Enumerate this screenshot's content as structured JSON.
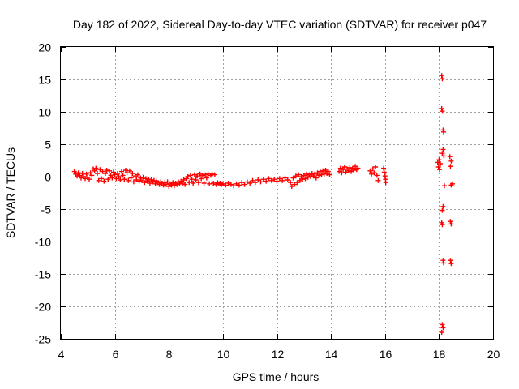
{
  "chart_data": {
    "type": "scatter",
    "title": "Day 182 of 2022, Sidereal Day-to-day VTEC variation (SDTVAR) for receiver p047",
    "xlabel": "GPS time / hours",
    "ylabel": "SDTVAR / TECUs",
    "xlim": [
      4,
      20
    ],
    "ylim": [
      -25,
      20
    ],
    "xticks": [
      4,
      6,
      8,
      10,
      12,
      14,
      16,
      18,
      20
    ],
    "yticks": [
      -25,
      -20,
      -15,
      -10,
      -5,
      0,
      5,
      10,
      15,
      20
    ],
    "xtick_labels": [
      "4",
      "6",
      "8",
      "10",
      "12",
      "14",
      "16",
      "18",
      "20"
    ],
    "ytick_labels": [
      "-25",
      "-20",
      "-15",
      "-10",
      "-5",
      "0",
      "5",
      "10",
      "15",
      "20"
    ],
    "grid": true,
    "point_marker": "+",
    "series": [
      {
        "name": "SDTVAR",
        "color": "#ff0000",
        "points": [
          [
            4.5,
            0.8
          ],
          [
            4.55,
            0.4
          ],
          [
            4.6,
            0.1
          ],
          [
            4.65,
            0.6
          ],
          [
            4.7,
            0.2
          ],
          [
            4.75,
            -0.2
          ],
          [
            4.8,
            0.5
          ],
          [
            4.85,
            0.0
          ],
          [
            4.9,
            -0.3
          ],
          [
            4.95,
            0.4
          ],
          [
            5.0,
            -0.1
          ],
          [
            5.05,
            -0.4
          ],
          [
            5.1,
            0.6
          ],
          [
            5.15,
            0.2
          ],
          [
            5.2,
            1.2
          ],
          [
            5.25,
            0.9
          ],
          [
            5.3,
            1.3
          ],
          [
            5.35,
            0.5
          ],
          [
            5.4,
            -0.6
          ],
          [
            5.45,
            1.1
          ],
          [
            5.5,
            -0.3
          ],
          [
            5.55,
            0.8
          ],
          [
            5.6,
            -0.7
          ],
          [
            5.65,
            0.5
          ],
          [
            5.7,
            1.0
          ],
          [
            5.75,
            -0.4
          ],
          [
            5.8,
            0.9
          ],
          [
            5.85,
            0.2
          ],
          [
            5.9,
            -0.2
          ],
          [
            5.95,
            0.7
          ],
          [
            6.0,
            0.3
          ],
          [
            6.05,
            -0.3
          ],
          [
            6.1,
            0.5
          ],
          [
            6.15,
            0.0
          ],
          [
            6.2,
            -0.5
          ],
          [
            6.25,
            0.8
          ],
          [
            6.3,
            0.2
          ],
          [
            6.35,
            -0.4
          ],
          [
            6.4,
            1.0
          ],
          [
            6.45,
            0.6
          ],
          [
            6.5,
            -0.6
          ],
          [
            6.55,
            0.9
          ],
          [
            6.6,
            -0.2
          ],
          [
            6.65,
            0.5
          ],
          [
            6.7,
            -0.8
          ],
          [
            6.75,
            0.1
          ],
          [
            6.8,
            -0.5
          ],
          [
            6.85,
            0.3
          ],
          [
            6.9,
            -0.7
          ],
          [
            6.95,
            -0.2
          ],
          [
            7.0,
            -0.6
          ],
          [
            7.05,
            -0.1
          ],
          [
            7.1,
            -0.9
          ],
          [
            7.15,
            -0.3
          ],
          [
            7.2,
            -0.7
          ],
          [
            7.25,
            -0.4
          ],
          [
            7.3,
            -1.0
          ],
          [
            7.35,
            -0.5
          ],
          [
            7.4,
            -0.8
          ],
          [
            7.45,
            -0.6
          ],
          [
            7.5,
            -1.1
          ],
          [
            7.55,
            -0.7
          ],
          [
            7.6,
            -0.9
          ],
          [
            7.65,
            -1.2
          ],
          [
            7.7,
            -0.8
          ],
          [
            7.75,
            -1.0
          ],
          [
            7.8,
            -1.3
          ],
          [
            7.85,
            -0.9
          ],
          [
            7.9,
            -1.2
          ],
          [
            7.95,
            -0.8
          ],
          [
            8.0,
            -1.5
          ],
          [
            8.05,
            -1.1
          ],
          [
            8.1,
            -1.3
          ],
          [
            8.15,
            -0.9
          ],
          [
            8.2,
            -1.4
          ],
          [
            8.25,
            -1.0
          ],
          [
            8.3,
            -1.2
          ],
          [
            8.35,
            -0.8
          ],
          [
            8.4,
            -1.1
          ],
          [
            8.45,
            -0.7
          ],
          [
            8.5,
            -1.0
          ],
          [
            8.55,
            -0.5
          ],
          [
            8.6,
            -1.2
          ],
          [
            8.65,
            -0.3
          ],
          [
            8.7,
            0.0
          ],
          [
            8.75,
            -0.9
          ],
          [
            8.8,
            0.2
          ],
          [
            8.85,
            -0.4
          ],
          [
            8.9,
            -1.0
          ],
          [
            8.95,
            0.3
          ],
          [
            9.0,
            -0.5
          ],
          [
            9.05,
            0.1
          ],
          [
            9.1,
            -0.9
          ],
          [
            9.15,
            0.4
          ],
          [
            9.2,
            -0.3
          ],
          [
            9.25,
            0.2
          ],
          [
            9.3,
            -1.0
          ],
          [
            9.35,
            0.3
          ],
          [
            9.4,
            -0.2
          ],
          [
            9.45,
            0.4
          ],
          [
            9.5,
            -1.1
          ],
          [
            9.55,
            0.2
          ],
          [
            9.6,
            0.4
          ],
          [
            9.65,
            -1.0
          ],
          [
            9.7,
            0.3
          ],
          [
            9.75,
            -1.2
          ],
          [
            9.8,
            -0.9
          ],
          [
            9.85,
            -1.1
          ],
          [
            9.9,
            -1.0
          ],
          [
            9.95,
            -1.2
          ],
          [
            10.0,
            -1.1
          ],
          [
            10.1,
            -1.3
          ],
          [
            10.2,
            -1.0
          ],
          [
            10.3,
            -1.2
          ],
          [
            10.4,
            -1.4
          ],
          [
            10.5,
            -1.1
          ],
          [
            10.6,
            -1.3
          ],
          [
            10.7,
            -0.9
          ],
          [
            10.8,
            -1.2
          ],
          [
            10.9,
            -0.8
          ],
          [
            11.0,
            -1.0
          ],
          [
            11.1,
            -0.6
          ],
          [
            11.2,
            -0.9
          ],
          [
            11.3,
            -0.5
          ],
          [
            11.4,
            -0.8
          ],
          [
            11.5,
            -0.4
          ],
          [
            11.6,
            -0.7
          ],
          [
            11.7,
            -0.3
          ],
          [
            11.8,
            -0.6
          ],
          [
            11.9,
            -0.4
          ],
          [
            12.0,
            -0.7
          ],
          [
            12.1,
            -0.3
          ],
          [
            12.2,
            -0.6
          ],
          [
            12.3,
            -0.2
          ],
          [
            12.4,
            -0.5
          ],
          [
            12.5,
            -0.9
          ],
          [
            12.55,
            -1.5
          ],
          [
            12.6,
            -0.2
          ],
          [
            12.65,
            -1.2
          ],
          [
            12.7,
            0.1
          ],
          [
            12.75,
            -0.9
          ],
          [
            12.8,
            0.3
          ],
          [
            12.85,
            -0.6
          ],
          [
            12.9,
            0.0
          ],
          [
            12.95,
            -0.4
          ],
          [
            13.0,
            0.2
          ],
          [
            13.05,
            -0.3
          ],
          [
            13.1,
            0.4
          ],
          [
            13.15,
            -0.1
          ],
          [
            13.2,
            0.3
          ],
          [
            13.25,
            0.0
          ],
          [
            13.3,
            0.5
          ],
          [
            13.35,
            0.1
          ],
          [
            13.4,
            0.4
          ],
          [
            13.45,
            -0.2
          ],
          [
            13.5,
            0.6
          ],
          [
            13.55,
            0.2
          ],
          [
            13.6,
            0.8
          ],
          [
            13.65,
            0.3
          ],
          [
            13.7,
            0.9
          ],
          [
            13.75,
            0.4
          ],
          [
            13.8,
            1.0
          ],
          [
            13.85,
            0.5
          ],
          [
            13.9,
            0.8
          ],
          [
            13.95,
            0.3
          ],
          [
            14.3,
            0.8
          ],
          [
            14.35,
            1.3
          ],
          [
            14.4,
            0.6
          ],
          [
            14.45,
            1.1
          ],
          [
            14.5,
            1.5
          ],
          [
            14.55,
            0.7
          ],
          [
            14.6,
            1.2
          ],
          [
            14.65,
            0.9
          ],
          [
            14.7,
            1.4
          ],
          [
            14.75,
            0.8
          ],
          [
            14.8,
            1.3
          ],
          [
            14.85,
            1.0
          ],
          [
            14.9,
            1.6
          ],
          [
            14.95,
            1.1
          ],
          [
            15.0,
            1.3
          ],
          [
            15.45,
            0.9
          ],
          [
            15.5,
            0.4
          ],
          [
            15.55,
            1.2
          ],
          [
            15.6,
            0.6
          ],
          [
            15.65,
            1.5
          ],
          [
            15.7,
            0.2
          ],
          [
            15.75,
            -0.6
          ],
          [
            15.95,
            1.3
          ],
          [
            15.97,
            0.7
          ],
          [
            16.0,
            0.1
          ],
          [
            16.02,
            -0.4
          ],
          [
            16.03,
            -0.9
          ],
          [
            17.95,
            2.2
          ],
          [
            17.98,
            1.5
          ],
          [
            18.0,
            2.6
          ],
          [
            18.02,
            1.1
          ],
          [
            18.05,
            2.0
          ],
          [
            18.1,
            15.6
          ],
          [
            18.12,
            15.1
          ],
          [
            18.1,
            10.5
          ],
          [
            18.12,
            10.1
          ],
          [
            18.15,
            7.2
          ],
          [
            18.17,
            6.9
          ],
          [
            18.12,
            3.6
          ],
          [
            18.15,
            4.2
          ],
          [
            18.18,
            3.2
          ],
          [
            18.2,
            -1.4
          ],
          [
            18.15,
            -4.6
          ],
          [
            18.12,
            -5.2
          ],
          [
            18.1,
            -7.1
          ],
          [
            18.12,
            -7.4
          ],
          [
            18.15,
            -12.9
          ],
          [
            18.17,
            -13.3
          ],
          [
            18.12,
            -22.8
          ],
          [
            18.15,
            -23.3
          ],
          [
            18.1,
            -24.0
          ],
          [
            18.4,
            3.1
          ],
          [
            18.45,
            2.4
          ],
          [
            18.42,
            1.6
          ],
          [
            18.45,
            -1.3
          ],
          [
            18.5,
            -1.1
          ],
          [
            18.42,
            -6.9
          ],
          [
            18.45,
            -7.3
          ],
          [
            18.42,
            -12.9
          ],
          [
            18.45,
            -13.4
          ]
        ]
      }
    ]
  }
}
